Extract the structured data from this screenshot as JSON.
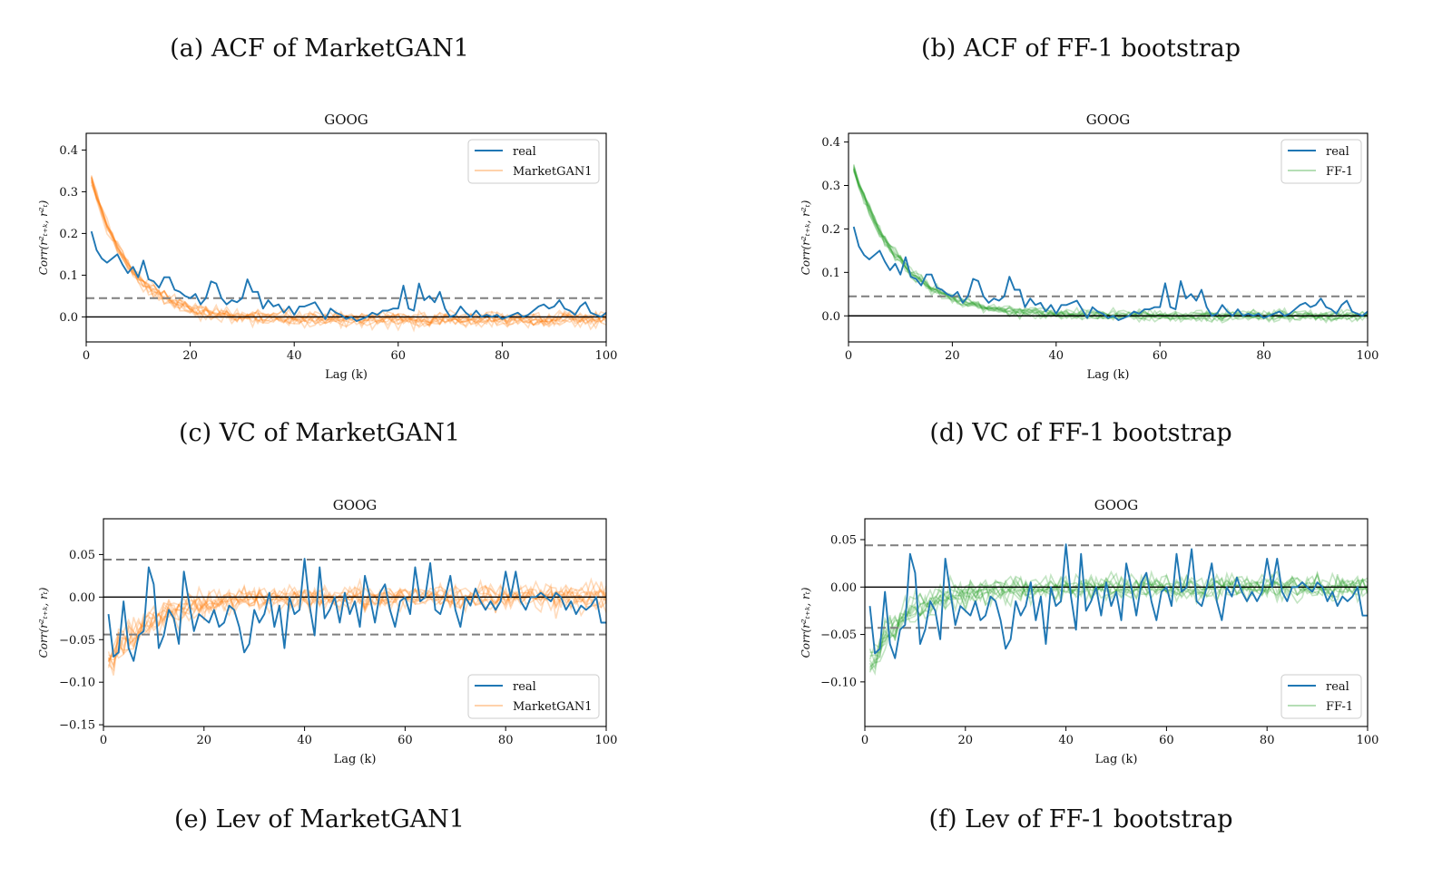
{
  "figure": {
    "captions": {
      "a": "(a) ACF of MarketGAN1",
      "b": "(b) ACF of FF-1 bootstrap",
      "c": "(c) VC of MarketGAN1",
      "d": "(d) VC of FF-1 bootstrap",
      "e": "(e) Lev of MarketGAN1",
      "f": "(f) Lev of FF-1 bootstrap"
    }
  },
  "colors": {
    "real": "#1f77b4",
    "marketgan": "#ff7f0e",
    "ff1": "#2ca02c",
    "dashed": "#7f7f7f",
    "axis": "#000000"
  },
  "chart_data": [
    {
      "id": "acf_marketgan",
      "type": "line",
      "title": "GOOG",
      "xlabel": "Lag (k)",
      "ylabel": "Corr(r²ₜ₊ₖ, r²ₜ)",
      "xlim": [
        0,
        100
      ],
      "ylim": [
        -0.06,
        0.44
      ],
      "xticks": [
        0,
        20,
        40,
        60,
        80,
        100
      ],
      "xtick_labels": [
        "0",
        "20",
        "40",
        "60",
        "80",
        "100"
      ],
      "yticks": [
        0.0,
        0.1,
        0.2,
        0.3,
        0.4
      ],
      "ytick_labels": [
        "0.0",
        "0.1",
        "0.2",
        "0.3",
        "0.4"
      ],
      "hlines": {
        "zero": 0.0,
        "dashed": [
          0.045
        ]
      },
      "legend": {
        "position": "upper-right",
        "entries": [
          "real",
          "MarketGAN1"
        ]
      },
      "series": [
        {
          "name": "real",
          "x_start": 1,
          "values": [
            0.205,
            0.16,
            0.14,
            0.13,
            0.14,
            0.15,
            0.125,
            0.105,
            0.12,
            0.095,
            0.135,
            0.09,
            0.085,
            0.07,
            0.095,
            0.095,
            0.065,
            0.06,
            0.05,
            0.045,
            0.055,
            0.03,
            0.045,
            0.085,
            0.08,
            0.045,
            0.03,
            0.04,
            0.035,
            0.045,
            0.09,
            0.06,
            0.06,
            0.02,
            0.04,
            0.025,
            0.03,
            0.01,
            0.025,
            0.005,
            0.025,
            0.025,
            0.03,
            0.035,
            0.015,
            -0.005,
            0.02,
            0.01,
            0.005,
            -0.005,
            0.0,
            -0.01,
            -0.005,
            0.0,
            0.01,
            0.005,
            0.015,
            0.015,
            0.02,
            0.02,
            0.075,
            0.02,
            0.015,
            0.08,
            0.04,
            0.05,
            0.035,
            0.06,
            0.02,
            0.0,
            0.005,
            0.025,
            0.01,
            0.0,
            0.015,
            0.0,
            0.005,
            0.0,
            0.005,
            -0.005,
            0.0,
            0.005,
            0.01,
            0.0,
            0.005,
            0.015,
            0.025,
            0.03,
            0.02,
            0.025,
            0.04,
            0.02,
            0.015,
            0.005,
            0.025,
            0.035,
            0.01,
            0.005,
            0.0,
            0.01
          ]
        },
        {
          "name": "MarketGAN1",
          "count": 10,
          "seed": 11,
          "x_start": 1,
          "x_end": 100,
          "profile": "acf",
          "noise": 0.035,
          "start": 0.33,
          "decay": 7.5,
          "tail": -0.005
        }
      ]
    },
    {
      "id": "acf_ff1",
      "type": "line",
      "title": "GOOG",
      "xlabel": "Lag (k)",
      "ylabel": "Corr(r²ₜ₊ₖ, r²ₜ)",
      "xlim": [
        0,
        100
      ],
      "ylim": [
        -0.06,
        0.42
      ],
      "xticks": [
        0,
        20,
        40,
        60,
        80,
        100
      ],
      "xtick_labels": [
        "0",
        "20",
        "40",
        "60",
        "80",
        "100"
      ],
      "yticks": [
        0.0,
        0.1,
        0.2,
        0.3,
        0.4
      ],
      "ytick_labels": [
        "0.0",
        "0.1",
        "0.2",
        "0.3",
        "0.4"
      ],
      "hlines": {
        "zero": 0.0,
        "dashed": [
          0.045
        ]
      },
      "legend": {
        "position": "upper-right",
        "entries": [
          "real",
          "FF-1"
        ]
      },
      "series": [
        {
          "name": "real",
          "x_start": 1,
          "values": [
            0.205,
            0.16,
            0.14,
            0.13,
            0.14,
            0.15,
            0.125,
            0.105,
            0.12,
            0.095,
            0.135,
            0.09,
            0.085,
            0.07,
            0.095,
            0.095,
            0.065,
            0.06,
            0.05,
            0.045,
            0.055,
            0.03,
            0.045,
            0.085,
            0.08,
            0.045,
            0.03,
            0.04,
            0.035,
            0.045,
            0.09,
            0.06,
            0.06,
            0.02,
            0.04,
            0.025,
            0.03,
            0.01,
            0.025,
            0.005,
            0.025,
            0.025,
            0.03,
            0.035,
            0.015,
            -0.005,
            0.02,
            0.01,
            0.005,
            -0.005,
            0.0,
            -0.01,
            -0.005,
            0.0,
            0.01,
            0.005,
            0.015,
            0.015,
            0.02,
            0.02,
            0.075,
            0.02,
            0.015,
            0.08,
            0.04,
            0.05,
            0.035,
            0.06,
            0.02,
            0.0,
            0.005,
            0.025,
            0.01,
            0.0,
            0.015,
            0.0,
            0.005,
            0.0,
            0.005,
            -0.005,
            0.0,
            0.005,
            0.01,
            0.0,
            0.005,
            0.015,
            0.025,
            0.03,
            0.02,
            0.025,
            0.04,
            0.02,
            0.015,
            0.005,
            0.025,
            0.035,
            0.01,
            0.005,
            0.0,
            0.01
          ]
        },
        {
          "name": "FF-1",
          "count": 10,
          "seed": 23,
          "x_start": 1,
          "x_end": 100,
          "profile": "acf",
          "noise": 0.025,
          "start": 0.34,
          "decay": 9.0,
          "tail": 0.0
        }
      ]
    },
    {
      "id": "lev_marketgan",
      "type": "line",
      "title": "GOOG",
      "xlabel": "Lag (k)",
      "ylabel": "Corr(r²ₜ₊ₖ, rₜ)",
      "xlim": [
        0,
        100
      ],
      "ylim": [
        -0.152,
        0.092
      ],
      "xticks": [
        0,
        20,
        40,
        60,
        80,
        100
      ],
      "xtick_labels": [
        "0",
        "20",
        "40",
        "60",
        "80",
        "100"
      ],
      "yticks": [
        -0.15,
        -0.1,
        -0.05,
        0.0,
        0.05
      ],
      "ytick_labels": [
        "−0.15",
        "−0.10",
        "−0.05",
        "0.00",
        "0.05"
      ],
      "hlines": {
        "zero": 0.0,
        "dashed": [
          0.044,
          -0.044
        ]
      },
      "legend": {
        "position": "lower-right",
        "entries": [
          "real",
          "MarketGAN1"
        ]
      },
      "series": [
        {
          "name": "real",
          "x_start": 1,
          "values": [
            -0.02,
            -0.07,
            -0.065,
            -0.005,
            -0.06,
            -0.075,
            -0.045,
            -0.04,
            0.035,
            0.015,
            -0.06,
            -0.045,
            -0.015,
            -0.025,
            -0.055,
            0.03,
            -0.005,
            -0.04,
            -0.02,
            -0.025,
            -0.03,
            -0.015,
            -0.035,
            -0.03,
            -0.01,
            -0.015,
            -0.035,
            -0.065,
            -0.055,
            -0.015,
            -0.03,
            -0.02,
            0.005,
            -0.035,
            -0.01,
            -0.06,
            0.0,
            -0.02,
            -0.015,
            0.045,
            -0.01,
            -0.045,
            0.035,
            -0.025,
            -0.015,
            0.0,
            -0.03,
            0.005,
            -0.02,
            -0.005,
            -0.035,
            0.025,
            0.0,
            -0.03,
            0.005,
            0.015,
            -0.015,
            -0.035,
            -0.005,
            0.0,
            -0.02,
            0.035,
            -0.005,
            0.0,
            0.04,
            -0.015,
            -0.02,
            0.0,
            0.025,
            -0.015,
            -0.035,
            0.0,
            -0.01,
            0.01,
            -0.005,
            -0.015,
            -0.005,
            -0.015,
            -0.005,
            0.03,
            0.0,
            0.03,
            -0.005,
            -0.015,
            0.0,
            0.0,
            0.005,
            0.0,
            -0.005,
            0.005,
            0.0,
            -0.015,
            -0.005,
            -0.02,
            -0.01,
            -0.015,
            -0.01,
            0.0,
            -0.03,
            -0.03
          ]
        },
        {
          "name": "MarketGAN1",
          "count": 10,
          "seed": 37,
          "x_start": 1,
          "x_end": 100,
          "profile": "lev",
          "noise": 0.028,
          "start": -0.075,
          "decay": 9.0,
          "tail": 0.0
        }
      ]
    },
    {
      "id": "lev_ff1",
      "type": "line",
      "title": "GOOG",
      "xlabel": "Lag (k)",
      "ylabel": "Corr(r²ₜ₊ₖ, rₜ)",
      "xlim": [
        0,
        100
      ],
      "ylim": [
        -0.147,
        0.072
      ],
      "xticks": [
        0,
        20,
        40,
        60,
        80,
        100
      ],
      "xtick_labels": [
        "0",
        "20",
        "40",
        "60",
        "80",
        "100"
      ],
      "yticks": [
        -0.1,
        -0.05,
        0.0,
        0.05
      ],
      "ytick_labels": [
        "−0.10",
        "−0.05",
        "0.00",
        "0.05"
      ],
      "hlines": {
        "zero": 0.0,
        "dashed": [
          0.044,
          -0.043
        ]
      },
      "legend": {
        "position": "lower-right",
        "entries": [
          "real",
          "FF-1"
        ]
      },
      "series": [
        {
          "name": "real",
          "x_start": 1,
          "values": [
            -0.02,
            -0.07,
            -0.065,
            -0.005,
            -0.06,
            -0.075,
            -0.045,
            -0.04,
            0.035,
            0.015,
            -0.06,
            -0.045,
            -0.015,
            -0.025,
            -0.055,
            0.03,
            -0.005,
            -0.04,
            -0.02,
            -0.025,
            -0.03,
            -0.015,
            -0.035,
            -0.03,
            -0.01,
            -0.015,
            -0.035,
            -0.065,
            -0.055,
            -0.015,
            -0.03,
            -0.02,
            0.005,
            -0.035,
            -0.01,
            -0.06,
            0.0,
            -0.02,
            -0.015,
            0.045,
            -0.01,
            -0.045,
            0.035,
            -0.025,
            -0.015,
            0.0,
            -0.03,
            0.005,
            -0.02,
            -0.005,
            -0.035,
            0.025,
            0.0,
            -0.03,
            0.005,
            0.015,
            -0.015,
            -0.035,
            -0.005,
            0.0,
            -0.02,
            0.035,
            -0.005,
            0.0,
            0.04,
            -0.015,
            -0.02,
            0.0,
            0.025,
            -0.015,
            -0.035,
            0.0,
            -0.01,
            0.01,
            -0.005,
            -0.015,
            -0.005,
            -0.015,
            -0.005,
            0.03,
            0.0,
            0.03,
            -0.005,
            -0.015,
            0.0,
            0.0,
            0.005,
            0.0,
            -0.005,
            0.005,
            0.0,
            -0.015,
            -0.005,
            -0.02,
            -0.01,
            -0.015,
            -0.01,
            0.0,
            -0.03,
            -0.03
          ]
        },
        {
          "name": "FF-1",
          "count": 10,
          "seed": 53,
          "x_start": 1,
          "x_end": 100,
          "profile": "lev",
          "noise": 0.025,
          "start": -0.08,
          "decay": 8.0,
          "tail": 0.0
        }
      ]
    }
  ]
}
